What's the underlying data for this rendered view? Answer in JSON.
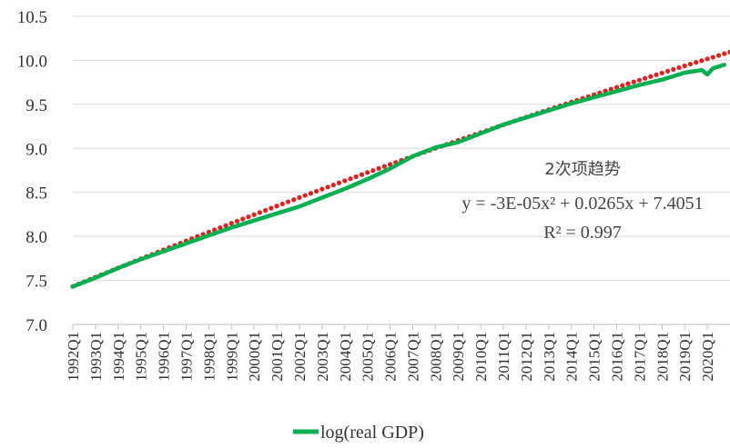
{
  "chart_data": {
    "type": "line",
    "title": "",
    "xlabel": "",
    "ylabel": "",
    "ylim": [
      7.0,
      10.5
    ],
    "yticks": [
      "7.0",
      "7.5",
      "8.0",
      "8.5",
      "9.0",
      "9.5",
      "10.0",
      "10.5"
    ],
    "x_tick_labels": [
      "1992Q1",
      "1993Q1",
      "1994Q1",
      "1995Q1",
      "1996Q1",
      "1997Q1",
      "1998Q1",
      "1999Q1",
      "2000Q1",
      "2001Q1",
      "2002Q1",
      "2003Q1",
      "2004Q1",
      "2005Q1",
      "2006Q1",
      "2007Q1",
      "2008Q1",
      "2009Q1",
      "2010Q1",
      "2011Q1",
      "2012Q1",
      "2013Q1",
      "2014Q1",
      "2015Q1",
      "2016Q1",
      "2017Q1",
      "2018Q1",
      "2019Q1",
      "2020Q1"
    ],
    "grid": true,
    "legend_position": "bottom",
    "series": [
      {
        "name": "log(real GDP)",
        "color": "#00b050",
        "x": [
          "1992Q1",
          "1993Q1",
          "1994Q1",
          "1995Q1",
          "1996Q1",
          "1997Q1",
          "1998Q1",
          "1999Q1",
          "2000Q1",
          "2001Q1",
          "2002Q1",
          "2003Q1",
          "2004Q1",
          "2005Q1",
          "2006Q1",
          "2007Q1",
          "2008Q1",
          "2009Q1",
          "2010Q1",
          "2011Q1",
          "2012Q1",
          "2013Q1",
          "2014Q1",
          "2015Q1",
          "2016Q1",
          "2017Q1",
          "2018Q1",
          "2019Q1",
          "2019Q4",
          "2020Q1",
          "2020Q2",
          "2020Q3",
          "2020Q4"
        ],
        "values": [
          7.43,
          7.53,
          7.64,
          7.74,
          7.83,
          7.92,
          8.01,
          8.1,
          8.18,
          8.26,
          8.34,
          8.44,
          8.54,
          8.65,
          8.77,
          8.91,
          9.01,
          9.07,
          9.17,
          9.27,
          9.35,
          9.43,
          9.51,
          9.58,
          9.65,
          9.72,
          9.78,
          9.86,
          9.89,
          9.84,
          9.91,
          9.93,
          9.95
        ]
      }
    ],
    "trendline": {
      "type": "polynomial",
      "order": 2,
      "color": "#e02020",
      "style": "dotted",
      "coefficients": {
        "a": -3e-05,
        "b": 0.0265,
        "c": 7.4051
      }
    },
    "annotation": {
      "title": "2次项趋势",
      "equation": "y = -3E-05x² + 0.0265x + 7.4051",
      "r2": "R² = 0.997"
    }
  }
}
